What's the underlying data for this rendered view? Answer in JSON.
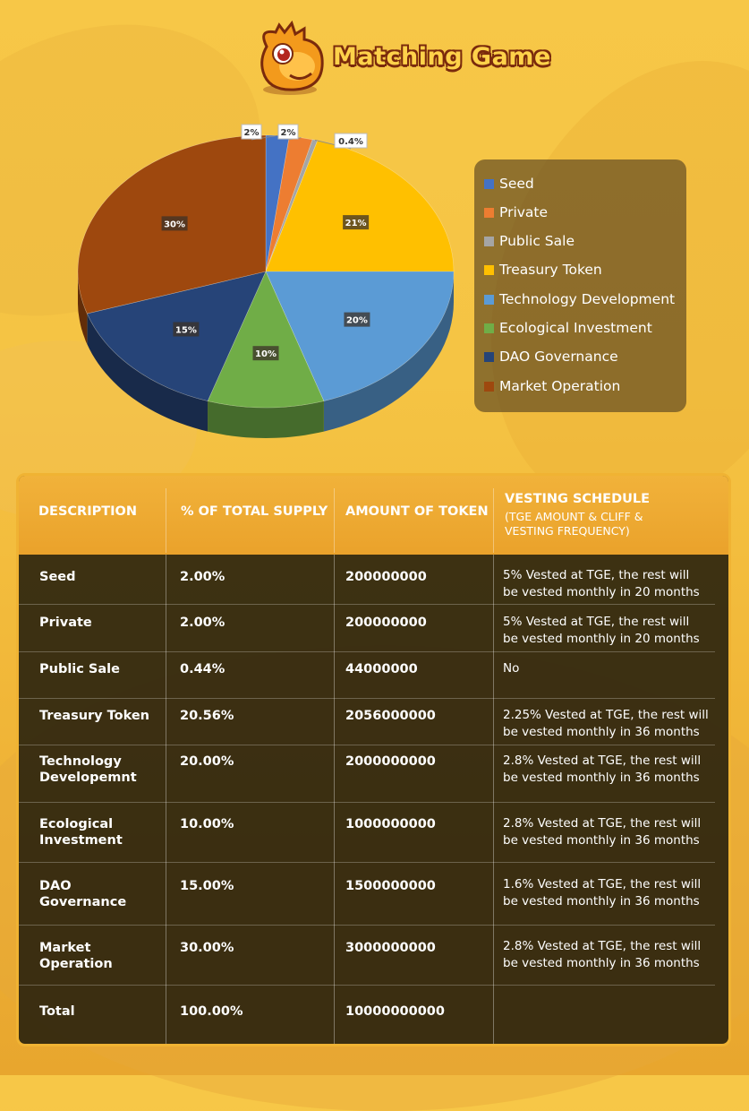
{
  "brand": {
    "name": "Matching Game"
  },
  "chart_data": {
    "type": "pie",
    "title": "",
    "slices": [
      {
        "label": "Seed",
        "value": 2.0,
        "display": "2%",
        "color": "#4472c4"
      },
      {
        "label": "Private",
        "value": 2.0,
        "display": "2%",
        "color": "#ed7d31"
      },
      {
        "label": "Public Sale",
        "value": 0.44,
        "display": "0.4%",
        "color": "#a5a5a5"
      },
      {
        "label": "Treasury Token",
        "value": 20.56,
        "display": "21%",
        "color": "#ffc000"
      },
      {
        "label": "Technology Development",
        "value": 20.0,
        "display": "20%",
        "color": "#5b9bd5"
      },
      {
        "label": "Ecological Investment",
        "value": 10.0,
        "display": "10%",
        "color": "#70ad47"
      },
      {
        "label": "DAO Governance",
        "value": 15.0,
        "display": "15%",
        "color": "#264478"
      },
      {
        "label": "Market Operation",
        "value": 30.0,
        "display": "30%",
        "color": "#9e480e"
      }
    ],
    "legend_position": "right",
    "style": "3d"
  },
  "table": {
    "headers": {
      "description": "DESCRIPTION",
      "percent": "% OF TOTAL SUPPLY",
      "amount": "AMOUNT OF TOKEN",
      "vesting": "VESTING SCHEDULE",
      "vesting_sub_1": "(TGE AMOUNT & CLIFF &",
      "vesting_sub_2": "VESTING FREQUENCY)"
    },
    "rows": [
      {
        "desc1": "Seed",
        "desc2": "",
        "percent": "2.00%",
        "amount": "200000000",
        "vest1": "5% Vested at TGE, the rest will",
        "vest2": "be vested monthly in 20 months"
      },
      {
        "desc1": "Private",
        "desc2": "",
        "percent": "2.00%",
        "amount": "200000000",
        "vest1": "5% Vested at TGE, the rest will",
        "vest2": "be vested monthly in 20 months"
      },
      {
        "desc1": "Public  Sale",
        "desc2": "",
        "percent": "0.44%",
        "amount": "44000000",
        "vest1": "No",
        "vest2": ""
      },
      {
        "desc1": "Treasury  Token",
        "desc2": "",
        "percent": "20.56%",
        "amount": "2056000000",
        "vest1": "2.25% Vested at TGE, the rest will",
        "vest2": "be vested monthly in 36 months"
      },
      {
        "desc1": "Technology",
        "desc2": "Developemnt",
        "percent": "20.00%",
        "amount": "2000000000",
        "vest1": "2.8% Vested at TGE, the rest will",
        "vest2": "be vested monthly in 36 months"
      },
      {
        "desc1": "Ecological",
        "desc2": "Investment",
        "percent": "10.00%",
        "amount": "1000000000",
        "vest1": "2.8% Vested at TGE, the rest will",
        "vest2": "be vested monthly in 36 months"
      },
      {
        "desc1": "DAO",
        "desc2": "Governance",
        "percent": "15.00%",
        "amount": "1500000000",
        "vest1": "1.6% Vested at TGE, the rest will",
        "vest2": "be vested monthly in 36 months"
      },
      {
        "desc1": "Market",
        "desc2": "Operation",
        "percent": "30.00%",
        "amount": "3000000000",
        "vest1": "2.8% Vested at TGE, the rest will",
        "vest2": "be vested monthly in 36 months"
      },
      {
        "desc1": "Total",
        "desc2": "",
        "percent": "100.00%",
        "amount": "10000000000",
        "vest1": "",
        "vest2": ""
      }
    ]
  }
}
